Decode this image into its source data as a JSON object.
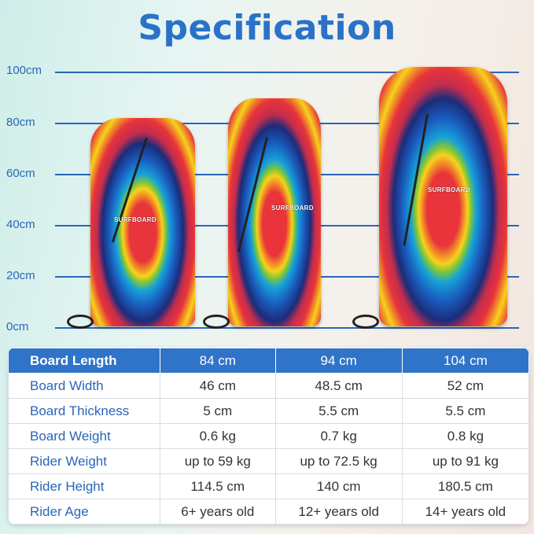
{
  "title": "Specification",
  "scale": {
    "ticks": [
      "100cm",
      "80cm",
      "60cm",
      "40cm",
      "20cm",
      "0cm"
    ]
  },
  "boards": [
    {
      "logo": "SURFBOARD",
      "length_cm": 84
    },
    {
      "logo": "SURFBOARD",
      "length_cm": 94
    },
    {
      "logo": "SURFBOARD",
      "length_cm": 104
    }
  ],
  "table": {
    "rows": [
      {
        "label": "Board Length",
        "values": [
          "84 cm",
          "94 cm",
          "104 cm"
        ]
      },
      {
        "label": "Board Width",
        "values": [
          "46 cm",
          "48.5 cm",
          "52 cm"
        ]
      },
      {
        "label": "Board Thickness",
        "values": [
          "5 cm",
          "5.5 cm",
          "5.5 cm"
        ]
      },
      {
        "label": "Board Weight",
        "values": [
          "0.6 kg",
          "0.7 kg",
          "0.8 kg"
        ]
      },
      {
        "label": "Rider Weight",
        "values": [
          "up to 59 kg",
          "up to 72.5 kg",
          "up to 91 kg"
        ]
      },
      {
        "label": "Rider Height",
        "values": [
          "114.5 cm",
          "140 cm",
          "180.5 cm"
        ]
      },
      {
        "label": "Rider Age",
        "values": [
          "6+ years old",
          "12+ years old",
          "14+ years old"
        ]
      }
    ]
  },
  "colors": {
    "accent": "#2f74c8",
    "title": "#2a72c8"
  }
}
